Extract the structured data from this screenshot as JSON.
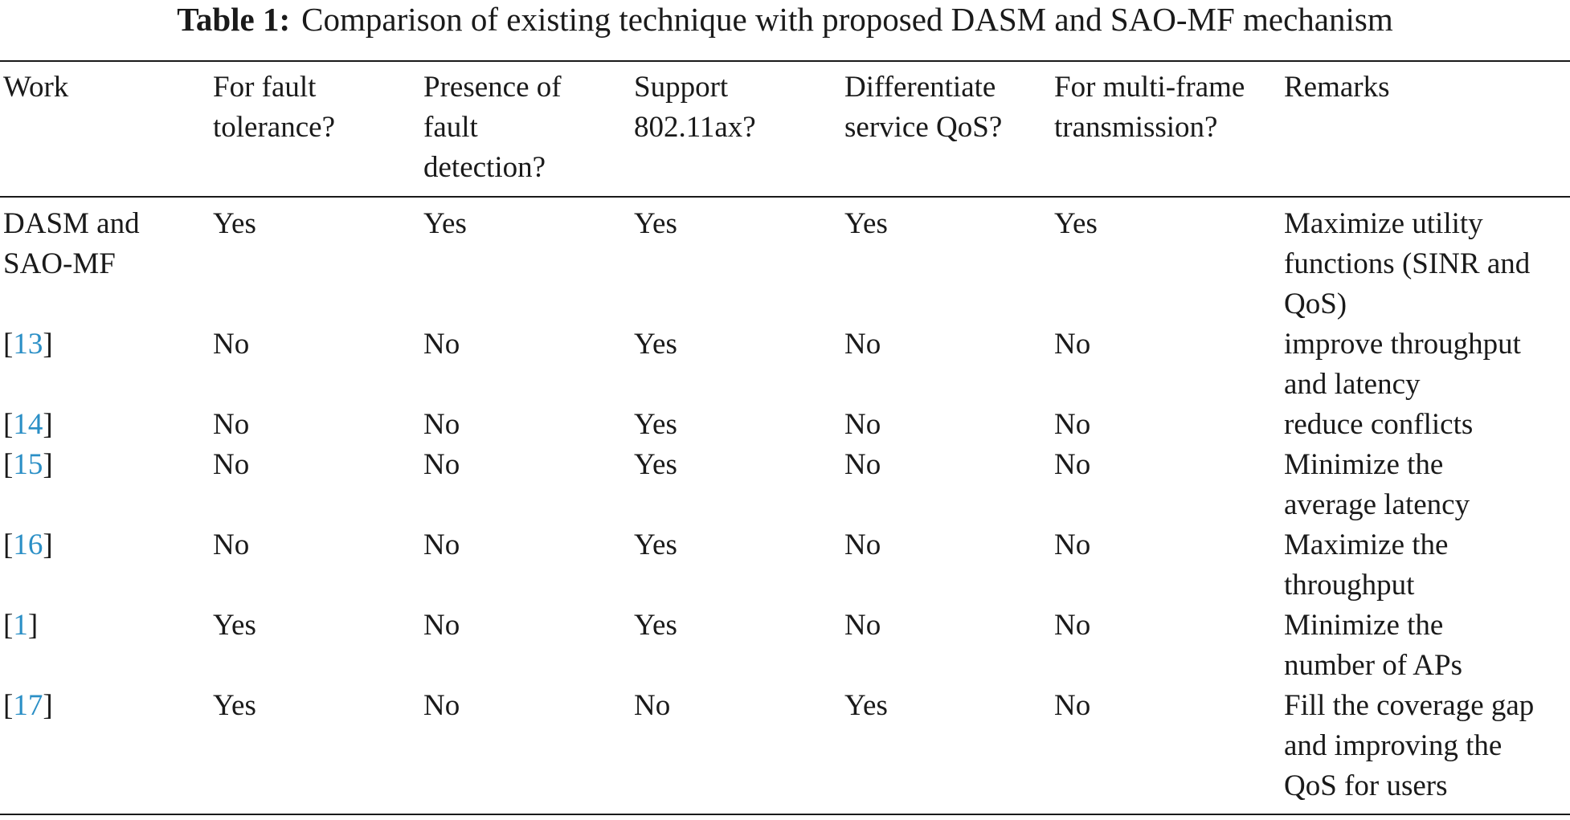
{
  "caption": {
    "label": "Table 1:",
    "text": "Comparison of existing technique with proposed DASM and SAO-MF mechanism"
  },
  "header": [
    "Work",
    "For fault tolerance?",
    "Presence of fault detection?",
    "Support 802.11ax?",
    "Differentiate service QoS?",
    "For multi-frame transmission?",
    "Remarks"
  ],
  "rows": [
    {
      "work": "DASM and SAO-MF",
      "ref": "",
      "cells": [
        "Yes",
        "Yes",
        "Yes",
        "Yes",
        "Yes"
      ],
      "remarks": "Maximize utility functions (SINR and QoS)"
    },
    {
      "work": "",
      "ref": "13",
      "cells": [
        "No",
        "No",
        "Yes",
        "No",
        "No"
      ],
      "remarks": "improve throughput and latency"
    },
    {
      "work": "",
      "ref": "14",
      "cells": [
        "No",
        "No",
        "Yes",
        "No",
        "No"
      ],
      "remarks": "reduce conflicts"
    },
    {
      "work": "",
      "ref": "15",
      "cells": [
        "No",
        "No",
        "Yes",
        "No",
        "No"
      ],
      "remarks": "Minimize the average latency"
    },
    {
      "work": "",
      "ref": "16",
      "cells": [
        "No",
        "No",
        "Yes",
        "No",
        "No"
      ],
      "remarks": "Maximize the throughput"
    },
    {
      "work": "",
      "ref": "1",
      "cells": [
        "Yes",
        "No",
        "Yes",
        "No",
        "No"
      ],
      "remarks": "Minimize the number of APs"
    },
    {
      "work": "",
      "ref": "17",
      "cells": [
        "Yes",
        "No",
        "No",
        "Yes",
        "No"
      ],
      "remarks": "Fill the coverage gap and improving the QoS for users"
    }
  ]
}
